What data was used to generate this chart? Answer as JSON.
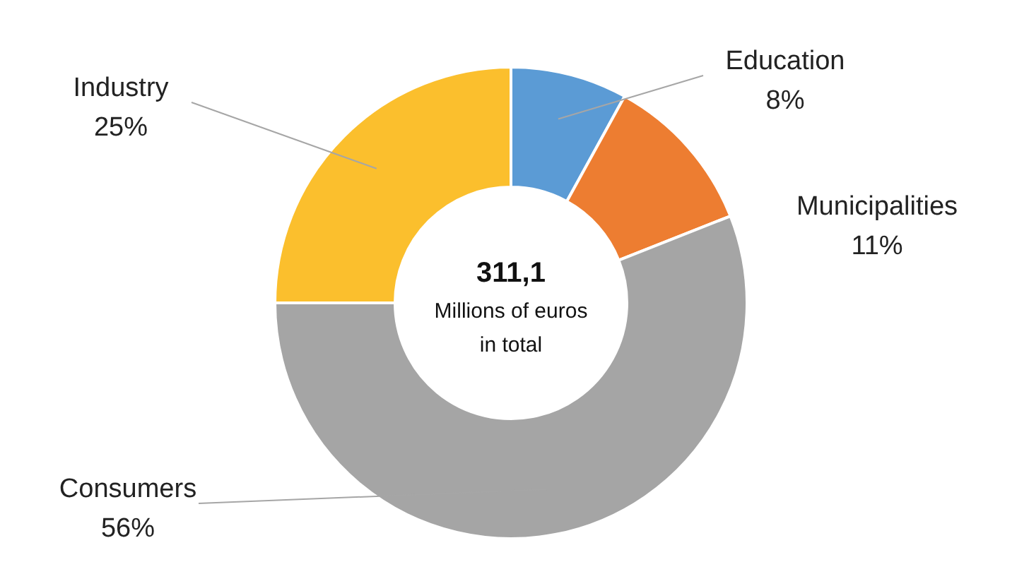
{
  "chart_data": {
    "type": "donut",
    "categories": [
      "Education",
      "Municipalities",
      "Consumers",
      "Industry"
    ],
    "values": [
      8,
      11,
      56,
      25
    ],
    "colors": [
      "#5b9bd5",
      "#ed7d31",
      "#a5a5a5",
      "#fbbf2d"
    ],
    "value_labels": [
      "8%",
      "11%",
      "56%",
      "25%"
    ],
    "annotations": [
      "311,1",
      "Millions of euros",
      "in total"
    ]
  }
}
